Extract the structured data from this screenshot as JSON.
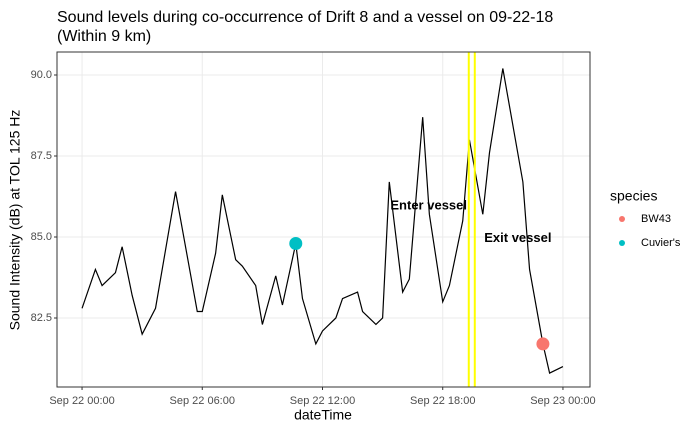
{
  "chart_data": {
    "type": "line",
    "title": [
      "Sound levels during co-occurrence of Drift 8 and a vessel on 09-22-18",
      "(Within 9 km)"
    ],
    "xlabel": "dateTime",
    "ylabel": "Sound Intensity (dB) at TOL 125 Hz",
    "x": [
      "Sep 22 00:00",
      "Sep 22 00:40",
      "Sep 22 01:00",
      "Sep 22 01:40",
      "Sep 22 02:00",
      "Sep 22 02:30",
      "Sep 22 03:00",
      "Sep 22 03:40",
      "Sep 22 04:40",
      "Sep 22 05:45",
      "Sep 22 06:00",
      "Sep 22 06:40",
      "Sep 22 07:00",
      "Sep 22 07:40",
      "Sep 22 08:00",
      "Sep 22 08:40",
      "Sep 22 09:00",
      "Sep 22 09:40",
      "Sep 22 10:00",
      "Sep 22 10:40",
      "Sep 22 11:00",
      "Sep 22 11:40",
      "Sep 22 12:00",
      "Sep 22 12:40",
      "Sep 22 13:00",
      "Sep 22 13:45",
      "Sep 22 14:00",
      "Sep 22 14:40",
      "Sep 22 15:00",
      "Sep 22 15:20",
      "Sep 22 16:00",
      "Sep 22 16:20",
      "Sep 22 17:00",
      "Sep 22 17:20",
      "Sep 22 18:00",
      "Sep 22 18:20",
      "Sep 22 19:00",
      "Sep 22 19:20",
      "Sep 22 20:00",
      "Sep 22 20:20",
      "Sep 22 21:00",
      "Sep 22 22:00",
      "Sep 22 22:20",
      "Sep 22 23:00",
      "Sep 22 23:20",
      "Sep 23 00:00"
    ],
    "values": [
      82.8,
      84.0,
      83.5,
      83.9,
      84.7,
      83.2,
      82.0,
      82.8,
      86.4,
      82.7,
      82.7,
      84.5,
      86.3,
      84.3,
      84.1,
      83.5,
      82.3,
      83.8,
      82.9,
      84.8,
      83.1,
      81.7,
      82.1,
      82.5,
      83.1,
      83.3,
      82.7,
      82.3,
      82.5,
      86.7,
      83.3,
      83.7,
      88.7,
      85.7,
      83.0,
      83.5,
      85.5,
      88.0,
      85.7,
      87.6,
      90.2,
      86.7,
      84.0,
      81.7,
      80.8,
      81.0
    ],
    "color": "#000000",
    "series": [
      {
        "name": "BW43",
        "color": "#F8766D",
        "x": [
          "Sep 22 23:00"
        ],
        "values": [
          81.7
        ]
      },
      {
        "name": "Cuvier's",
        "color": "#00BFC4",
        "x": [
          "Sep 22 10:40"
        ],
        "values": [
          84.8
        ]
      }
    ],
    "legend_title": "species",
    "vlines": [
      {
        "x": "Sep 22 19:18",
        "color": "#FFFF00"
      },
      {
        "x": "Sep 22 19:36",
        "color": "#FFFF00"
      }
    ],
    "annotations": [
      {
        "text": "Enter vessel",
        "x": "Sep 22 17:18",
        "y": 85.95
      },
      {
        "text": "Exit vessel",
        "x": "Sep 22 21:45",
        "y": 84.95
      }
    ],
    "xlim": [
      "Sep 21 22:45",
      "Sep 23 01:21"
    ],
    "xticks": [
      "Sep 22 00:00",
      "Sep 22 06:00",
      "Sep 22 12:00",
      "Sep 22 18:00",
      "Sep 23 00:00"
    ],
    "ylim": [
      80.37,
      90.71
    ],
    "yticks": [
      82.5,
      {
        "value": 85,
        "label": "85.0"
      },
      87.5,
      {
        "value": 90,
        "label": "90.0"
      }
    ],
    "grid": true
  }
}
